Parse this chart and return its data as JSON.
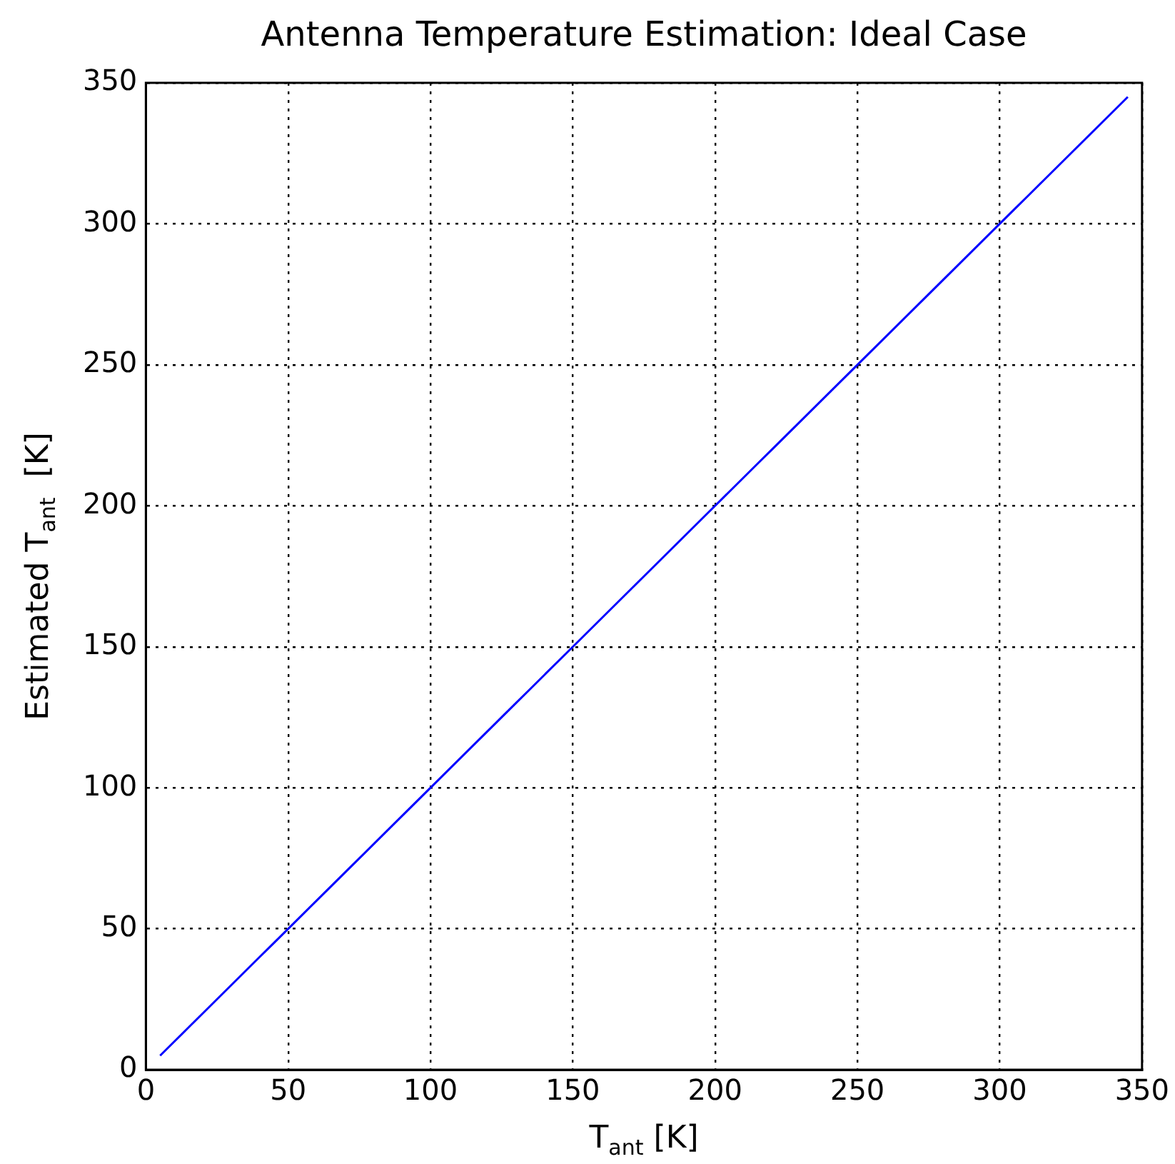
{
  "chart_data": {
    "type": "line",
    "title": "Antenna Temperature Estimation: Ideal Case",
    "xlabel": "T$_{ant}$ [K]",
    "ylabel": "Estimated T$_{ant}$  [K]",
    "x": [
      5,
      10,
      15,
      20,
      25,
      30,
      35,
      40,
      45,
      50,
      55,
      60,
      65,
      70,
      75,
      80,
      85,
      90,
      95,
      100,
      105,
      110,
      115,
      120,
      125,
      130,
      135,
      140,
      145,
      150,
      155,
      160,
      165,
      170,
      175,
      180,
      185,
      190,
      195,
      200,
      205,
      210,
      215,
      220,
      225,
      230,
      235,
      240,
      245,
      250,
      255,
      260,
      265,
      270,
      275,
      280,
      285,
      290,
      295,
      300,
      305,
      310,
      315,
      320,
      325,
      330,
      335,
      340,
      345
    ],
    "series": [
      {
        "color": "#0000ff",
        "values": [
          5,
          10,
          15,
          20,
          25,
          30,
          35,
          40,
          45,
          50,
          55,
          60,
          65,
          70,
          75,
          80,
          85,
          90,
          95,
          100,
          105,
          110,
          115,
          120,
          125,
          130,
          135,
          140,
          145,
          150,
          155,
          160,
          165,
          170,
          175,
          180,
          185,
          190,
          195,
          200,
          205,
          210,
          215,
          220,
          225,
          230,
          235,
          240,
          245,
          250,
          255,
          260,
          265,
          270,
          275,
          280,
          285,
          290,
          295,
          300,
          305,
          310,
          315,
          320,
          325,
          330,
          335,
          340,
          345
        ]
      }
    ],
    "xlim": [
      0,
      350
    ],
    "ylim": [
      0,
      350
    ],
    "xticks": [
      0,
      50,
      100,
      150,
      200,
      250,
      300,
      350
    ],
    "yticks": [
      0,
      50,
      100,
      150,
      200,
      250,
      300,
      350
    ],
    "grid": true,
    "legend": false,
    "marker": "none",
    "line_style": "solid"
  }
}
